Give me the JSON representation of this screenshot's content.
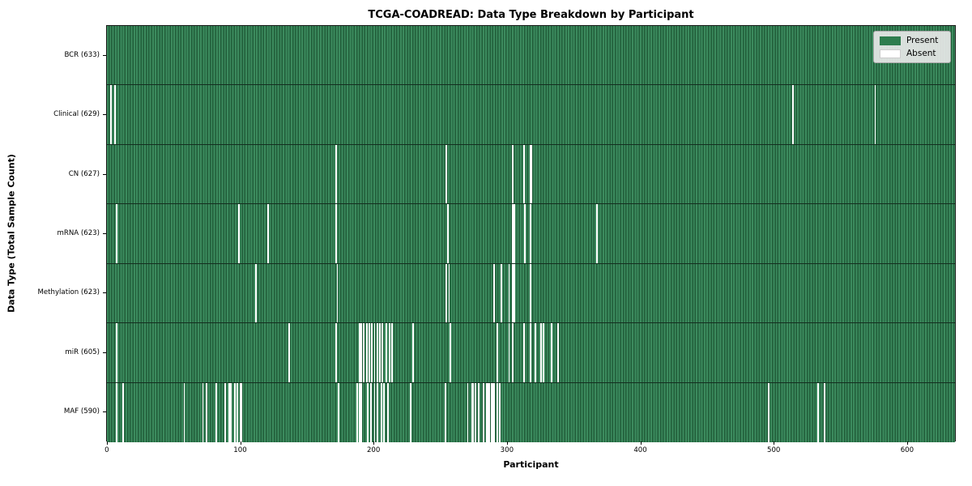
{
  "title": "TCGA-COADREAD: Data Type Breakdown by Participant",
  "xlabel": "Participant",
  "ylabel": "Data Type (Total Sample Count)",
  "legend": {
    "present_label": "Present",
    "absent_label": "Absent"
  },
  "colors": {
    "present_green": "#2e7d4e",
    "present_stripe_light": "#3c8b5e",
    "present_stripe_dark": "#215d39",
    "absent_white": "#ffffff",
    "row_separator": "#142e1f",
    "legend_background": "#e8e8e8"
  },
  "chart_data": {
    "type": "heatmap",
    "title": "TCGA-COADREAD: Data Type Breakdown by Participant",
    "xlabel": "Participant",
    "ylabel": "Data Type (Total Sample Count)",
    "legend_entries": [
      {
        "label": "Present",
        "color": "#2e7d4e"
      },
      {
        "label": "Absent",
        "color": "#ffffff"
      }
    ],
    "legend_position": "upper right",
    "n_participants": 633,
    "x_axis_max": 637,
    "x_tick_values": [
      0,
      100,
      200,
      300,
      400,
      500,
      600
    ],
    "x_tick_labels": [
      "0",
      "100",
      "200",
      "300",
      "400",
      "500",
      "600"
    ],
    "rows": [
      {
        "label": "BCR (633)",
        "data_type": "BCR",
        "total_samples": 633,
        "absent_participants": []
      },
      {
        "label": "Clinical (629)",
        "data_type": "Clinical",
        "total_samples": 629,
        "absent_participants": [
          2,
          5,
          514,
          576
        ]
      },
      {
        "label": "CN (627)",
        "data_type": "CN",
        "total_samples": 627,
        "absent_participants": [
          171,
          254,
          304,
          312,
          317,
          318
        ]
      },
      {
        "label": "mRNA (623)",
        "data_type": "mRNA",
        "total_samples": 623,
        "absent_participants": [
          6,
          98,
          120,
          171,
          255,
          304,
          305,
          313,
          317,
          367
        ]
      },
      {
        "label": "Methylation (623)",
        "data_type": "Methylation",
        "total_samples": 623,
        "absent_participants": [
          111,
          172,
          254,
          256,
          290,
          295,
          301,
          304,
          305,
          317
        ]
      },
      {
        "label": "miR (605)",
        "data_type": "miR",
        "total_samples": 605,
        "absent_participants": [
          6,
          136,
          171,
          189,
          190,
          192,
          194,
          196,
          198,
          200,
          202,
          204,
          206,
          209,
          211,
          213,
          229,
          257,
          292,
          301,
          304,
          312,
          317,
          321,
          325,
          327,
          333,
          338
        ]
      },
      {
        "label": "MAF (590)",
        "data_type": "MAF",
        "total_samples": 590,
        "absent_participants": [
          6,
          11,
          57,
          71,
          74,
          81,
          88,
          91,
          92,
          95,
          97,
          99,
          100,
          173,
          187,
          189,
          190,
          195,
          197,
          200,
          202,
          205,
          207,
          210,
          227,
          253,
          270,
          273,
          274,
          276,
          278,
          282,
          284,
          285,
          286,
          288,
          289,
          290,
          292,
          294,
          496,
          533,
          538
        ]
      }
    ]
  }
}
